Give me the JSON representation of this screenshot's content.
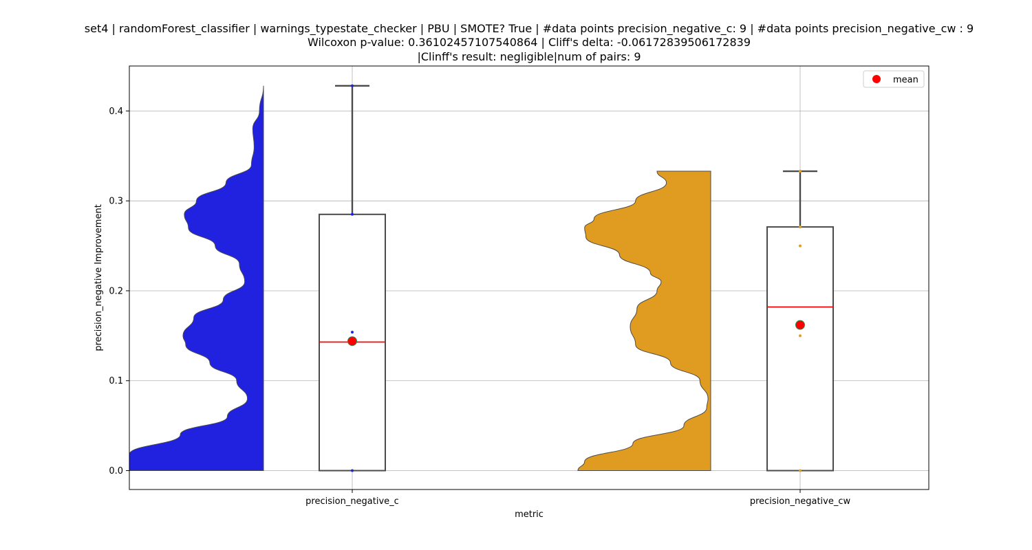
{
  "chart_data": {
    "type": "violin+box",
    "title_lines": [
      "set4 | randomForest_classifier | warnings_typestate_checker | PBU | SMOTE? True | #data points precision_negative_c: 9 | #data points precision_negative_cw : 9",
      "Wilcoxon p-value: 0.36102457107540864 | Cliff's delta: -0.06172839506172839",
      "|Clinff's result: negligible|num of pairs: 9"
    ],
    "xlabel": "metric",
    "ylabel": "precision_negative Improvement",
    "ylim": [
      -0.021,
      0.45
    ],
    "yticks": [
      0.0,
      0.1,
      0.2,
      0.3,
      0.4
    ],
    "ytick_labels": [
      "0.0",
      "0.1",
      "0.2",
      "0.3",
      "0.4"
    ],
    "categories": [
      "precision_negative_c",
      "precision_negative_cw"
    ],
    "grid": true,
    "legend": {
      "label": "mean",
      "placement": "top-right",
      "marker_color": "#ff0000"
    },
    "series": [
      {
        "name": "precision_negative_c",
        "violin_color": "#2121e0",
        "point_color": "#2121e0",
        "box": {
          "min": 0.0,
          "q1": 0.0,
          "median": 0.143,
          "q3": 0.285,
          "max": 0.428
        },
        "mean": 0.144,
        "points": [
          0.0,
          0.154,
          0.285,
          0.428
        ],
        "violin_profile": [
          [
            0.0,
            1.0
          ],
          [
            0.018,
            1.0
          ],
          [
            0.04,
            0.62
          ],
          [
            0.06,
            0.27
          ],
          [
            0.08,
            0.12
          ],
          [
            0.1,
            0.2
          ],
          [
            0.12,
            0.4
          ],
          [
            0.14,
            0.58
          ],
          [
            0.15,
            0.6
          ],
          [
            0.17,
            0.52
          ],
          [
            0.19,
            0.3
          ],
          [
            0.21,
            0.14
          ],
          [
            0.23,
            0.18
          ],
          [
            0.25,
            0.36
          ],
          [
            0.27,
            0.56
          ],
          [
            0.285,
            0.59
          ],
          [
            0.3,
            0.5
          ],
          [
            0.32,
            0.28
          ],
          [
            0.34,
            0.09
          ],
          [
            0.36,
            0.07
          ],
          [
            0.38,
            0.08
          ],
          [
            0.4,
            0.03
          ],
          [
            0.428,
            0.0
          ]
        ]
      },
      {
        "name": "precision_negative_cw",
        "violin_color": "#e09c21",
        "point_color": "#e09c21",
        "box": {
          "min": 0.0,
          "q1": 0.0,
          "median": 0.182,
          "q3": 0.271,
          "max": 0.333
        },
        "mean": 0.162,
        "points": [
          0.0,
          0.15,
          0.25,
          0.271,
          0.333
        ],
        "violin_profile": [
          [
            0.0,
            0.99
          ],
          [
            0.01,
            0.94
          ],
          [
            0.03,
            0.58
          ],
          [
            0.05,
            0.2
          ],
          [
            0.07,
            0.03
          ],
          [
            0.08,
            0.02
          ],
          [
            0.1,
            0.08
          ],
          [
            0.12,
            0.3
          ],
          [
            0.14,
            0.56
          ],
          [
            0.16,
            0.6
          ],
          [
            0.18,
            0.55
          ],
          [
            0.2,
            0.4
          ],
          [
            0.21,
            0.37
          ],
          [
            0.22,
            0.45
          ],
          [
            0.24,
            0.68
          ],
          [
            0.26,
            0.93
          ],
          [
            0.27,
            0.94
          ],
          [
            0.28,
            0.87
          ],
          [
            0.3,
            0.56
          ],
          [
            0.32,
            0.33
          ],
          [
            0.333,
            0.4
          ]
        ]
      }
    ]
  }
}
